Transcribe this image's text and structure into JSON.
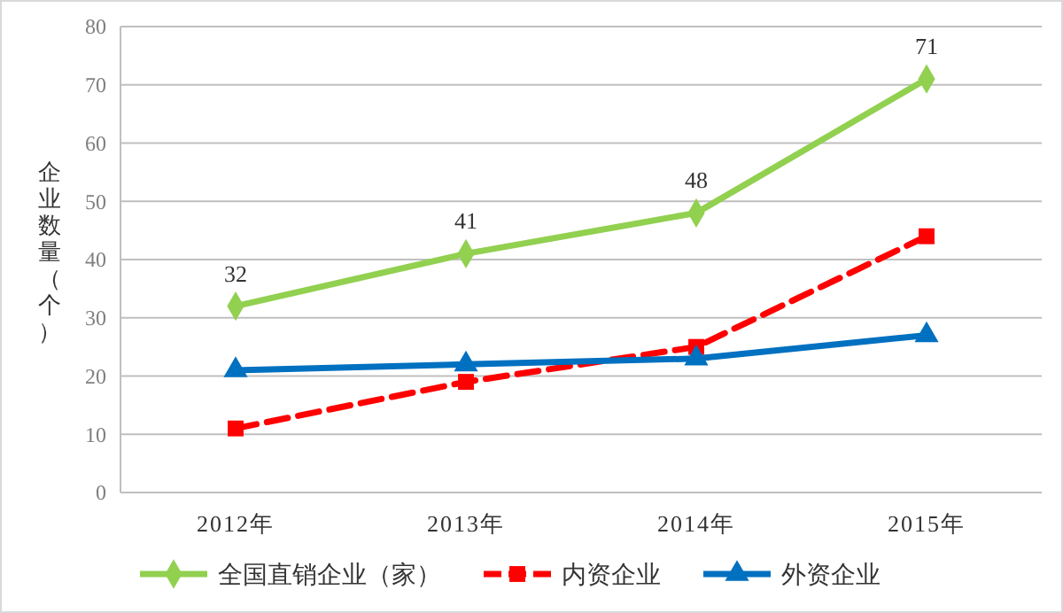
{
  "chart_data": {
    "type": "line",
    "ylabel": "企业数量（个）",
    "categories": [
      "2012年",
      "2013年",
      "2014年",
      "2015年"
    ],
    "ylim": [
      0,
      80
    ],
    "yticks": [
      0,
      10,
      20,
      30,
      40,
      50,
      60,
      70,
      80
    ],
    "grid": "y",
    "legend": "bottom",
    "series": [
      {
        "name": "全国直销企业（家）",
        "color": "#92d050",
        "values": [
          32,
          41,
          48,
          71
        ],
        "value_labels": [
          "32",
          "41",
          "48",
          "71"
        ],
        "marker": "diamond",
        "line_style": "solid"
      },
      {
        "name": "内资企业",
        "color": "#ff0000",
        "values": [
          11,
          19,
          25,
          44
        ],
        "marker": "square",
        "line_style": "dashed"
      },
      {
        "name": "外资企业",
        "color": "#0070c0",
        "values": [
          21,
          22,
          23,
          27
        ],
        "marker": "triangle",
        "line_style": "solid"
      }
    ]
  }
}
